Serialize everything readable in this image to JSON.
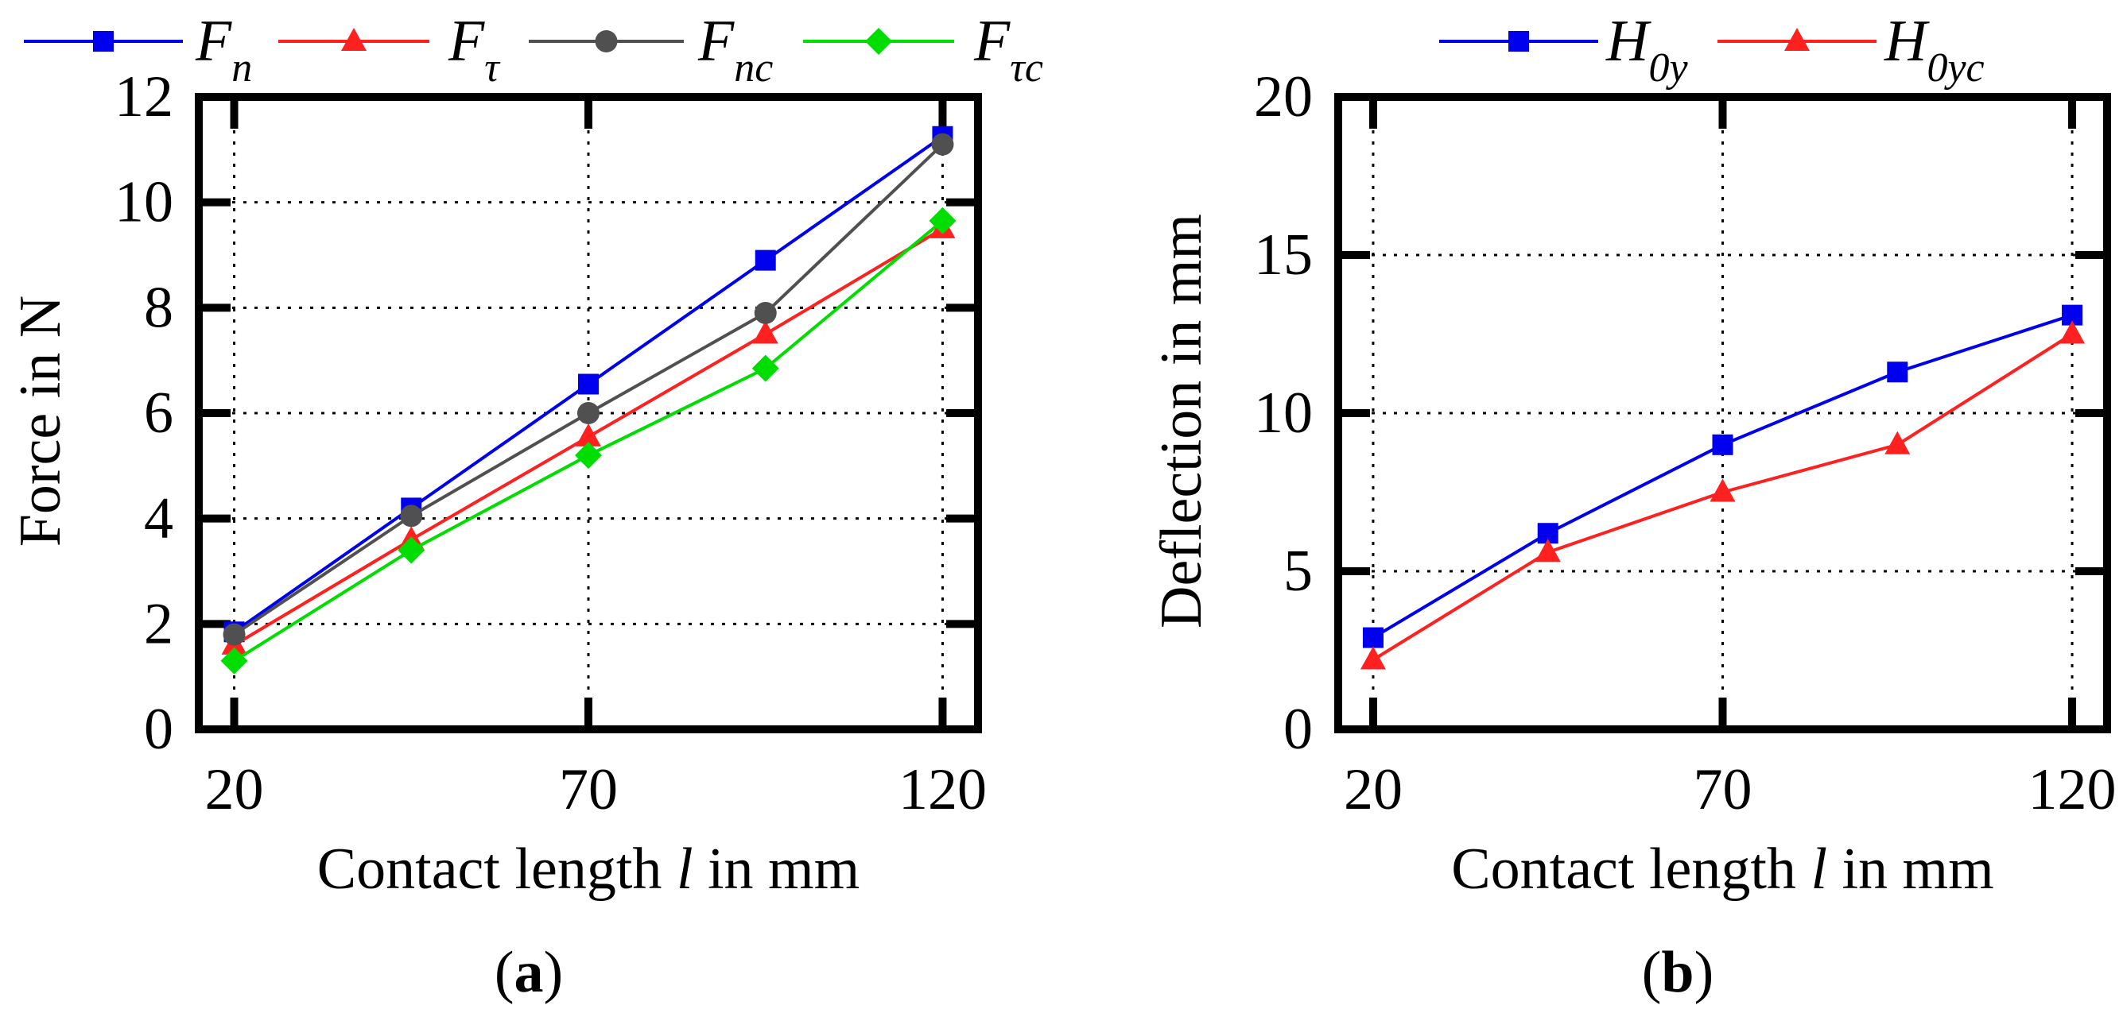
{
  "chart_data": [
    {
      "type": "line",
      "panel_label": "a",
      "xlabel_prefix": "Contact length ",
      "xlabel_var": "l",
      "xlabel_suffix": " in mm",
      "ylabel": "Force in N",
      "x": [
        20,
        45,
        70,
        95,
        120
      ],
      "xlim": [
        15,
        125
      ],
      "ylim": [
        0,
        12
      ],
      "xticks": [
        20,
        70,
        120
      ],
      "yticks": [
        0,
        2,
        4,
        6,
        8,
        10,
        12
      ],
      "legend_position": "top",
      "series": [
        {
          "name": "F",
          "sub": "n",
          "color": "#0000ee",
          "marker": "square",
          "values": [
            1.85,
            4.2,
            6.55,
            8.9,
            11.25
          ]
        },
        {
          "name": "F",
          "sub": "τ",
          "color": "#ff2020",
          "marker": "triangle",
          "values": [
            1.6,
            3.6,
            5.55,
            7.5,
            9.5
          ]
        },
        {
          "name": "F",
          "sub": "nc",
          "color": "#505050",
          "marker": "circle",
          "values": [
            1.8,
            4.05,
            6.0,
            7.9,
            11.1
          ]
        },
        {
          "name": "F",
          "sub": "τc",
          "color": "#00dd00",
          "marker": "diamond",
          "values": [
            1.3,
            3.4,
            5.2,
            6.85,
            9.65
          ]
        }
      ]
    },
    {
      "type": "line",
      "panel_label": "b",
      "xlabel_prefix": "Contact length ",
      "xlabel_var": "l",
      "xlabel_suffix": " in mm",
      "ylabel": "Deflection in mm",
      "x": [
        20,
        45,
        70,
        95,
        120
      ],
      "xlim": [
        15,
        125
      ],
      "ylim": [
        0,
        20
      ],
      "xticks": [
        20,
        70,
        120
      ],
      "yticks": [
        0,
        5,
        10,
        15,
        20
      ],
      "legend_position": "top",
      "series": [
        {
          "name": "H",
          "sub": "0y",
          "color": "#0000ee",
          "marker": "square",
          "values": [
            2.9,
            6.2,
            9.0,
            11.3,
            13.1
          ]
        },
        {
          "name": "H",
          "sub": "0yc",
          "color": "#ff2020",
          "marker": "triangle",
          "values": [
            2.2,
            5.6,
            7.5,
            9.0,
            12.5
          ]
        }
      ]
    }
  ]
}
